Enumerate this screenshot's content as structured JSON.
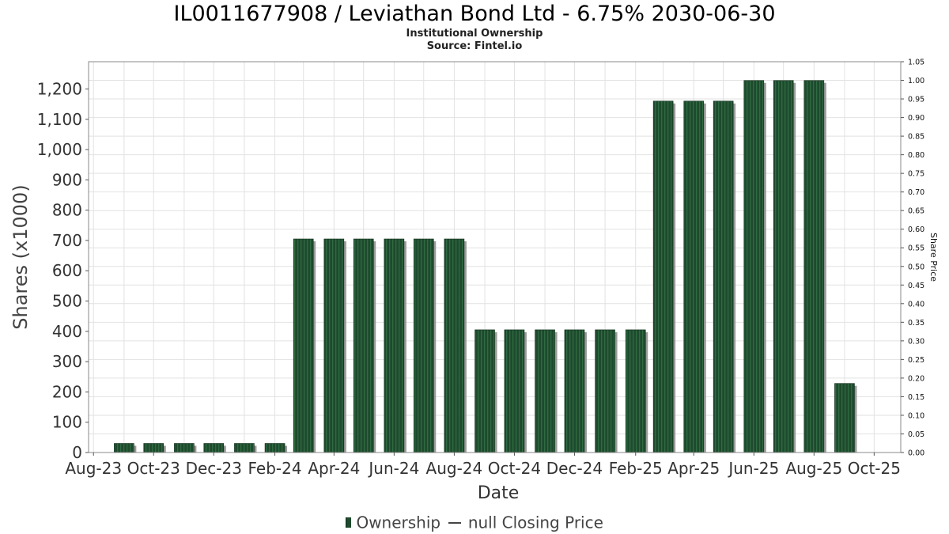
{
  "title": "IL0011677908 / Leviathan Bond Ltd - 6.75% 2030-06-30",
  "subtitle1": "Institutional Ownership",
  "subtitle2": "Source: Fintel.io",
  "colors": {
    "bar_fill": "#1e4a2d",
    "bar_stripe": "#2f6b42",
    "bar_shadow": "#8a8a8a",
    "grid": "#e2e2e2",
    "plot_border": "#888888"
  },
  "legend": {
    "ownership_label": "Ownership",
    "closing_label": "null Closing Price"
  },
  "chart_data": {
    "type": "bar",
    "title": "IL0011677908 / Leviathan Bond Ltd - 6.75% 2030-06-30",
    "subtitle": [
      "Institutional Ownership",
      "Source: Fintel.io"
    ],
    "xlabel": "Date",
    "ylabel": "Shares (x1000)",
    "y2label": "Share Price",
    "x_ticks": [
      "Aug-23",
      "Oct-23",
      "Dec-23",
      "Feb-24",
      "Apr-24",
      "Jun-24",
      "Aug-24",
      "Oct-24",
      "Dec-24",
      "Feb-25",
      "Apr-25",
      "Jun-25",
      "Aug-25",
      "Oct-25"
    ],
    "y_ticks": [
      "0",
      "100",
      "200",
      "300",
      "400",
      "500",
      "600",
      "700",
      "800",
      "900",
      "1,000",
      "1,100",
      "1,200"
    ],
    "y2_ticks": [
      "0.00",
      "0.05",
      "0.10",
      "0.15",
      "0.20",
      "0.25",
      "0.30",
      "0.35",
      "0.40",
      "0.45",
      "0.50",
      "0.55",
      "0.60",
      "0.65",
      "0.70",
      "0.75",
      "0.80",
      "0.85",
      "0.90",
      "0.95",
      "1.00",
      "1.05"
    ],
    "ylim": [
      0,
      1290
    ],
    "y2lim": [
      0,
      1.05
    ],
    "xlim": [
      "2023-07-27",
      "2025-10-28"
    ],
    "grid": true,
    "legend_position": "bottom",
    "series": [
      {
        "name": "Ownership",
        "dates": [
          "2023-09-01",
          "2023-10-01",
          "2023-11-01",
          "2023-12-01",
          "2024-01-01",
          "2024-02-01",
          "2024-03-01",
          "2024-04-01",
          "2024-05-01",
          "2024-06-01",
          "2024-07-01",
          "2024-08-01",
          "2024-09-01",
          "2024-10-01",
          "2024-11-01",
          "2024-12-01",
          "2025-01-01",
          "2025-02-01",
          "2025-03-01",
          "2025-04-01",
          "2025-05-01",
          "2025-06-01",
          "2025-07-01",
          "2025-08-01",
          "2025-09-01"
        ],
        "values": [
          30,
          30,
          30,
          30,
          30,
          30,
          705,
          705,
          705,
          705,
          705,
          705,
          405,
          405,
          405,
          405,
          405,
          405,
          1160,
          1160,
          1160,
          1228,
          1228,
          1228,
          228
        ]
      }
    ]
  }
}
